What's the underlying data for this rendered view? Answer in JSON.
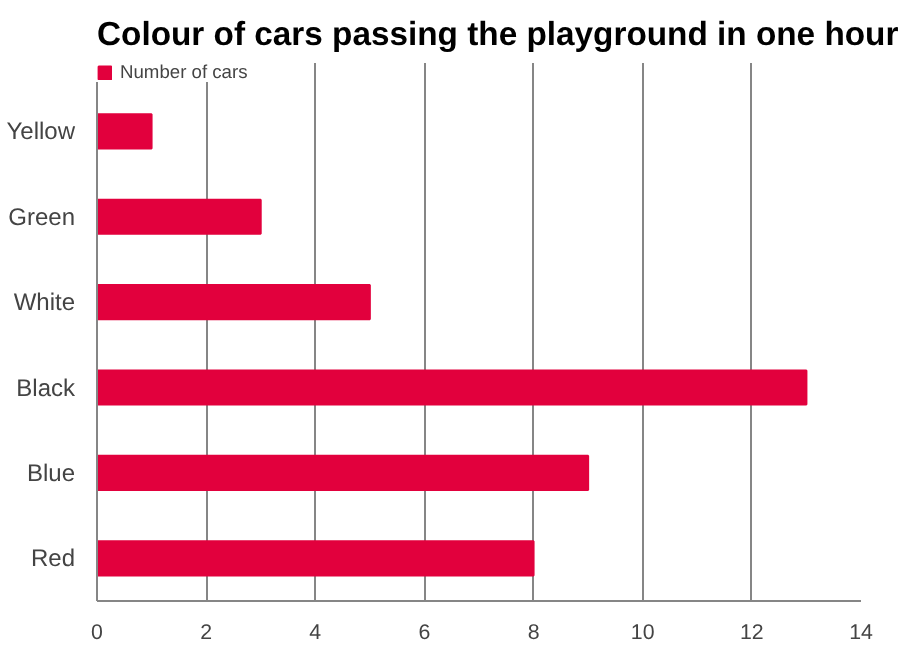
{
  "chart_data": {
    "type": "bar",
    "orientation": "horizontal",
    "title": "Colour of cars passing the playground in one hour",
    "categories": [
      "Yellow",
      "Green",
      "White",
      "Black",
      "Blue",
      "Red"
    ],
    "series": [
      {
        "name": "Number of cars",
        "color": "#e2003d",
        "values": [
          1,
          3,
          5,
          13,
          9,
          8
        ]
      }
    ],
    "xlim": [
      0,
      14
    ],
    "xticks": [
      0,
      2,
      4,
      6,
      8,
      10,
      12,
      14
    ],
    "grid": "x",
    "legend": "top left"
  }
}
